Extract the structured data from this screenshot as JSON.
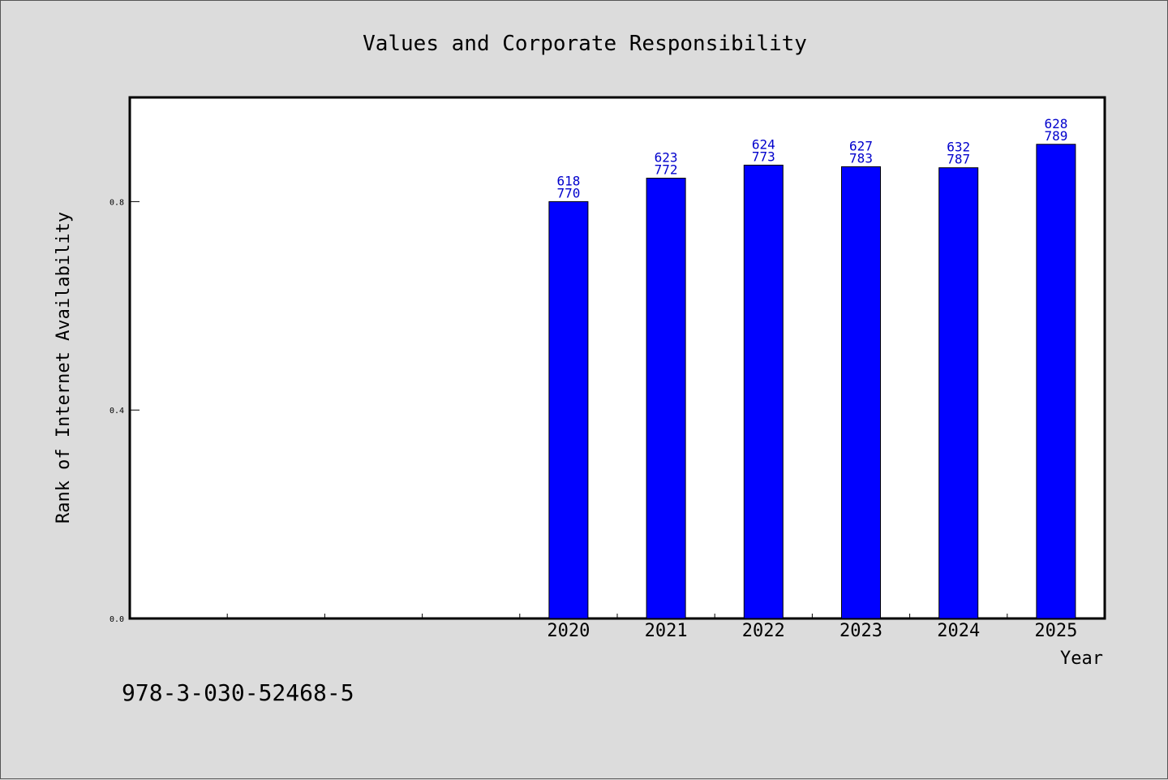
{
  "chart_data": {
    "type": "bar",
    "title": "Values and Corporate Responsibility",
    "xlabel": "Year",
    "ylabel": "Rank of Internet Availability",
    "categories": [
      "2020",
      "2021",
      "2022",
      "2023",
      "2024",
      "2025"
    ],
    "values": [
      0.8,
      0.845,
      0.87,
      0.867,
      0.865,
      0.91
    ],
    "bar_labels": [
      [
        "618",
        "770"
      ],
      [
        "623",
        "772"
      ],
      [
        "624",
        "773"
      ],
      [
        "627",
        "783"
      ],
      [
        "632",
        "787"
      ],
      [
        "628",
        "789"
      ]
    ],
    "y_ticks": [
      "0.0",
      "0.4",
      "0.8"
    ],
    "y_tick_values": [
      0.0,
      0.4,
      0.8
    ],
    "ylim": [
      0,
      1.0
    ],
    "empty_leading_slots": 4,
    "bar_color": "#0000ff",
    "label_color": "#0000cc",
    "background": "#dcdcdc",
    "plot_background": "#ffffff",
    "grid": false,
    "legend": "none"
  },
  "footnote": "978-3-030-52468-5"
}
